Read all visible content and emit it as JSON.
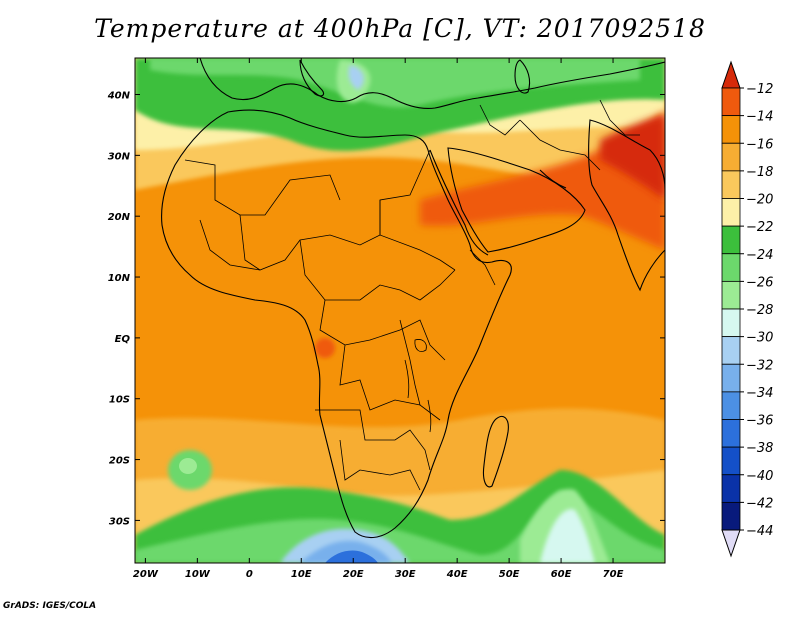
{
  "title": "Temperature at 400hPa [C], VT: 2017092518",
  "credit": "GrADS: IGES/COLA",
  "map": {
    "lat_range": [
      -37,
      46
    ],
    "lon_range": [
      -22,
      80
    ],
    "lat_ticks": [
      {
        "value": 40,
        "label": "40N"
      },
      {
        "value": 30,
        "label": "30N"
      },
      {
        "value": 20,
        "label": "20N"
      },
      {
        "value": 10,
        "label": "10N"
      },
      {
        "value": 0,
        "label": "EQ"
      },
      {
        "value": -10,
        "label": "10S"
      },
      {
        "value": -20,
        "label": "20S"
      },
      {
        "value": -30,
        "label": "30S"
      }
    ],
    "lon_ticks": [
      {
        "value": -20,
        "label": "20W"
      },
      {
        "value": -10,
        "label": "10W"
      },
      {
        "value": 0,
        "label": "0"
      },
      {
        "value": 10,
        "label": "10E"
      },
      {
        "value": 20,
        "label": "20E"
      },
      {
        "value": 30,
        "label": "30E"
      },
      {
        "value": 40,
        "label": "40E"
      },
      {
        "value": 50,
        "label": "50E"
      },
      {
        "value": 60,
        "label": "60E"
      },
      {
        "value": 70,
        "label": "70E"
      }
    ]
  },
  "colorbar": {
    "levels": [
      -12,
      -14,
      -16,
      -18,
      -20,
      -22,
      -24,
      -26,
      -28,
      -30,
      -32,
      -34,
      -36,
      -38,
      -40,
      -42,
      -44
    ],
    "colors": [
      "#d62a0a",
      "#ef5a0e",
      "#f59208",
      "#f7ad33",
      "#fac85c",
      "#fdf0a8",
      "#3cbf3c",
      "#6cd86c",
      "#9ceb94",
      "#d6f8f0",
      "#a8d0f2",
      "#78b0ec",
      "#4c90e4",
      "#2c70dc",
      "#1450c8",
      "#0a32a8",
      "#081a7c",
      "#e0dcf6"
    ]
  },
  "regions": [
    {
      "name": "ocean-band-orange-west",
      "color": "#f59208"
    },
    {
      "name": "north-green-band",
      "color": "#3cbf3c"
    },
    {
      "name": "south-green-band",
      "color": "#3cbf3c"
    },
    {
      "name": "south-blue-core",
      "color": "#4c90e4"
    },
    {
      "name": "arabia-red",
      "color": "#ef5a0e"
    }
  ]
}
